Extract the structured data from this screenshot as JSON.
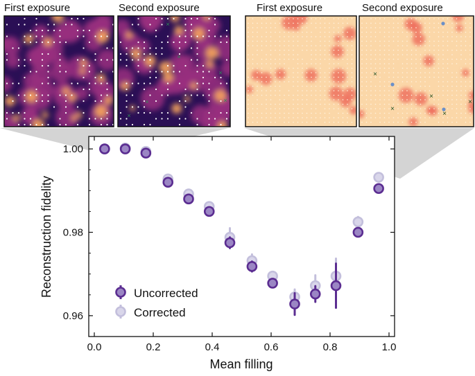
{
  "panels": {
    "left": {
      "first_title": "First exposure",
      "second_title": "Second exposure",
      "colormap": "magma"
    },
    "right": {
      "first_title": "First exposure",
      "second_title": "Second exposure",
      "colormap": "warm"
    }
  },
  "colors": {
    "uncorrected": "#5b2d91",
    "corrected": "#c3bfdc",
    "magma_dark": "#2a0f55",
    "magma_mid": "#9a2f7f",
    "magma_bright": "#f8a65c",
    "warm_bg": "#fbd7a8",
    "warm_spot": "#ee6a5a",
    "marker_green": "#2e8b57",
    "marker_blue": "#6a8fc8",
    "funnel": "#d4d4d4"
  },
  "chart_data": {
    "type": "scatter",
    "xlabel": "Mean filling",
    "ylabel": "Reconstruction fidelity",
    "xlim": [
      0.0,
      1.0
    ],
    "ylim": [
      0.955,
      1.003
    ],
    "xticks": [
      "0.0",
      "0.2",
      "0.4",
      "0.6",
      "0.8",
      "1.0"
    ],
    "yticks": [
      "0.96",
      "0.98",
      "1.00"
    ],
    "legend_position": "lower-left",
    "series": [
      {
        "name": "Uncorrected",
        "x": [
          0.035,
          0.105,
          0.175,
          0.25,
          0.32,
          0.39,
          0.46,
          0.535,
          0.605,
          0.68,
          0.75,
          0.82,
          0.895,
          0.965
        ],
        "y": [
          1.0,
          1.0,
          0.999,
          0.992,
          0.988,
          0.985,
          0.9775,
          0.9718,
          0.9678,
          0.9628,
          0.9652,
          0.9672,
          0.98,
          0.9905
        ],
        "err": [
          0.0002,
          0.0002,
          0.0004,
          0.0005,
          0.0006,
          0.0005,
          0.0013,
          0.0012,
          0.0008,
          0.0026,
          0.0019,
          0.0053,
          0.0008,
          0.0007
        ]
      },
      {
        "name": "Corrected",
        "x": [
          0.035,
          0.105,
          0.175,
          0.25,
          0.32,
          0.39,
          0.46,
          0.535,
          0.605,
          0.68,
          0.75,
          0.82,
          0.895,
          0.965
        ],
        "y": [
          1.0,
          1.0002,
          0.9994,
          0.9928,
          0.9892,
          0.9862,
          0.9788,
          0.9732,
          0.9695,
          0.9645,
          0.9672,
          0.9695,
          0.9825,
          0.9932
        ],
        "err": [
          0.0002,
          0.0002,
          0.0004,
          0.0005,
          0.0006,
          0.0005,
          0.0022,
          0.0015,
          0.001,
          0.0018,
          0.0025,
          0.0042,
          0.0012,
          0.0007
        ]
      }
    ]
  }
}
